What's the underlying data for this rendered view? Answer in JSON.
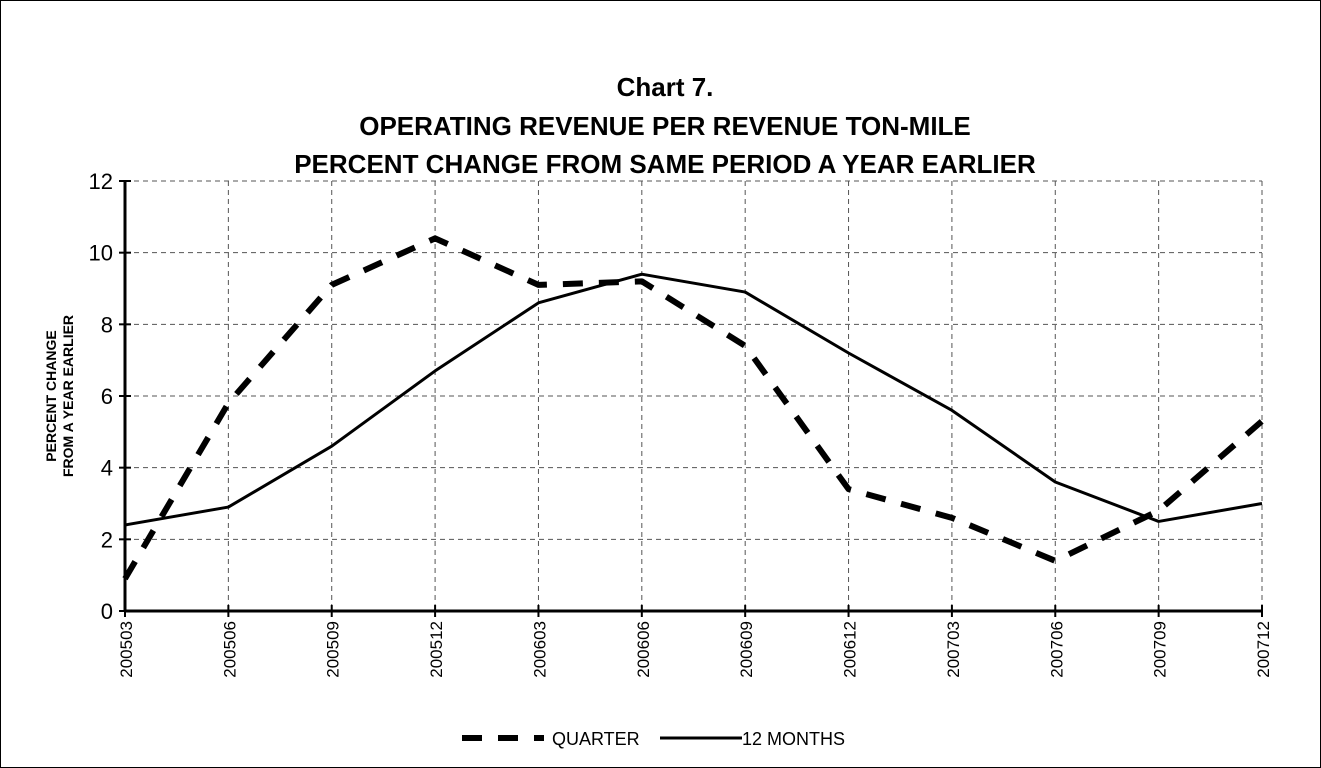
{
  "chart_data": {
    "type": "line",
    "title": [
      "Chart 7.",
      "OPERATING REVENUE PER REVENUE TON-MILE",
      "PERCENT CHANGE FROM SAME PERIOD A YEAR EARLIER"
    ],
    "ylabel": [
      "PERCENT CHANGE",
      "FROM A YEAR EARLIER"
    ],
    "categories": [
      "200503",
      "200506",
      "200509",
      "200512",
      "200603",
      "200606",
      "200609",
      "200612",
      "200703",
      "200706",
      "200709",
      "200712"
    ],
    "series": [
      {
        "name": "QUARTER",
        "color": "#000000",
        "dashed": true,
        "values": [
          0.9,
          5.8,
          9.1,
          10.4,
          9.1,
          9.2,
          7.4,
          3.4,
          2.6,
          1.4,
          2.8,
          5.3
        ]
      },
      {
        "name": "12 MONTHS",
        "color": "#000000",
        "dashed": false,
        "values": [
          2.4,
          2.9,
          4.6,
          6.7,
          8.6,
          9.4,
          8.9,
          7.2,
          5.6,
          3.6,
          2.5,
          3.0
        ]
      }
    ],
    "ylim": [
      0,
      12
    ],
    "yticks": [
      0,
      2,
      4,
      6,
      8,
      10,
      12
    ],
    "grid": true,
    "legend": "bottom"
  }
}
